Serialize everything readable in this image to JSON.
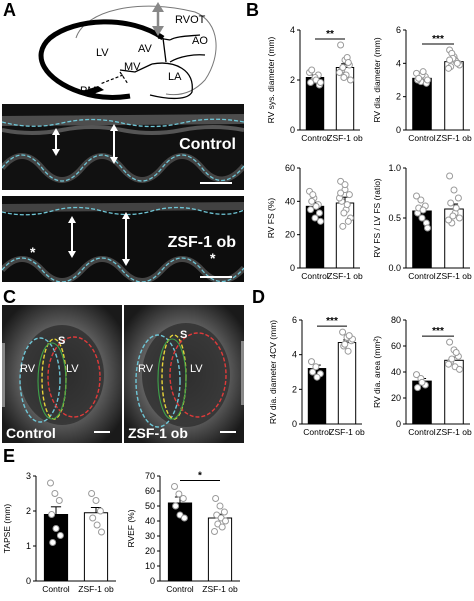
{
  "panels": {
    "A": "A",
    "B": "B",
    "C": "C",
    "D": "D",
    "E": "E"
  },
  "diagram": {
    "rvot": "RVOT",
    "ao": "AO",
    "lv": "LV",
    "av": "AV",
    "mv": "MV",
    "la": "LA",
    "pm": "PM"
  },
  "mmode": {
    "control": "Control",
    "zsf": "ZSF-1 ob",
    "asterisk": "*"
  },
  "echo": {
    "control": "Control",
    "zsf": "ZSF-1 ob",
    "rv": "RV",
    "lv": "LV",
    "s": "S"
  },
  "colors": {
    "control_bar": "#000000",
    "zsf_bar": "#ffffff",
    "dots": "#9a9a9a",
    "trace": "#6fc6d6"
  },
  "chart_data": [
    {
      "id": "b1",
      "type": "bar",
      "ylabel": "RV sys. diameter (mm)",
      "categories": [
        "Control",
        "ZSF-1 ob"
      ],
      "values": [
        2.1,
        2.5
      ],
      "errors": [
        0.1,
        0.15
      ],
      "ylim": [
        0,
        4
      ],
      "yticks": [
        "0",
        "2",
        "4"
      ],
      "sig": "**",
      "points": [
        [
          2.3,
          2.0,
          2.2,
          1.9,
          2.1,
          1.8,
          2.4,
          2.0,
          1.9
        ],
        [
          3.4,
          2.8,
          2.6,
          2.4,
          2.2,
          2.0,
          2.5,
          2.9,
          2.3,
          2.1,
          2.7
        ]
      ]
    },
    {
      "id": "b2",
      "type": "bar",
      "ylabel": "RV dia. diameter (mm)",
      "categories": [
        "Control",
        "ZSF-1 ob"
      ],
      "values": [
        3.1,
        4.1
      ],
      "errors": [
        0.1,
        0.12
      ],
      "ylim": [
        0,
        6
      ],
      "yticks": [
        "0",
        "2",
        "4",
        "6"
      ],
      "sig": "***",
      "points": [
        [
          3.4,
          2.9,
          3.2,
          3.0,
          3.3,
          2.8,
          3.1,
          3.5,
          3.0
        ],
        [
          4.8,
          4.4,
          4.0,
          3.8,
          4.2,
          3.9,
          4.6,
          4.1,
          3.7,
          4.3,
          4.0,
          4.2
        ]
      ]
    },
    {
      "id": "b3",
      "type": "bar",
      "ylabel": "RV FS (%)",
      "categories": [
        "Control",
        "ZSF-1 ob"
      ],
      "values": [
        37,
        39
      ],
      "errors": [
        2.5,
        3.5
      ],
      "ylim": [
        0,
        60
      ],
      "yticks": [
        "0",
        "20",
        "40",
        "60"
      ],
      "sig": "",
      "points": [
        [
          46,
          42,
          38,
          35,
          30,
          33,
          40,
          37,
          28,
          44
        ],
        [
          52,
          47,
          44,
          40,
          35,
          30,
          25,
          38,
          42,
          33,
          28,
          45,
          50
        ]
      ]
    },
    {
      "id": "b4",
      "type": "bar",
      "ylabel": "RV FS / LV FS (ratio)",
      "categories": [
        "Control",
        "ZSF-1 ob"
      ],
      "values": [
        0.57,
        0.59
      ],
      "errors": [
        0.04,
        0.05
      ],
      "ylim": [
        0,
        1.0
      ],
      "yticks": [
        "0.0",
        "0.5",
        "1.0"
      ],
      "sig": "",
      "points": [
        [
          0.72,
          0.68,
          0.62,
          0.55,
          0.5,
          0.45,
          0.6,
          0.58,
          0.4
        ],
        [
          0.92,
          0.78,
          0.7,
          0.65,
          0.55,
          0.5,
          0.45,
          0.6,
          0.48,
          0.52
        ]
      ]
    },
    {
      "id": "d1",
      "type": "bar",
      "ylabel": "RV dia. diameter 4CV (mm)",
      "categories": [
        "Control",
        "ZSF-1 ob"
      ],
      "values": [
        3.2,
        4.7
      ],
      "errors": [
        0.2,
        0.15
      ],
      "ylim": [
        0,
        6
      ],
      "yticks": [
        "0",
        "2",
        "4",
        "6"
      ],
      "sig": "***",
      "points": [
        [
          3.6,
          3.3,
          2.9,
          3.0,
          2.7
        ],
        [
          5.3,
          5.0,
          4.8,
          4.5,
          4.2,
          4.9,
          4.6,
          5.1
        ]
      ]
    },
    {
      "id": "d2",
      "type": "bar",
      "ylabel": "RV dia. area (mm²)",
      "categories": [
        "Control",
        "ZSF-1 ob"
      ],
      "values": [
        33,
        49
      ],
      "errors": [
        2,
        2.5
      ],
      "ylim": [
        0,
        80
      ],
      "yticks": [
        "0",
        "20",
        "40",
        "60",
        "80"
      ],
      "sig": "***",
      "points": [
        [
          38,
          35,
          30,
          28,
          32
        ],
        [
          63,
          57,
          52,
          48,
          44,
          42,
          50,
          55,
          46
        ]
      ]
    },
    {
      "id": "e1",
      "type": "bar",
      "ylabel": "TAPSE (mm)",
      "categories": [
        "Control",
        "ZSF-1 ob"
      ],
      "values": [
        1.9,
        1.95
      ],
      "errors": [
        0.22,
        0.15
      ],
      "ylim": [
        0,
        3
      ],
      "yticks": [
        "0",
        "1",
        "2",
        "3"
      ],
      "sig": "",
      "points": [
        [
          2.8,
          2.5,
          2.3,
          1.9,
          1.5,
          1.3,
          1.1
        ],
        [
          2.5,
          2.3,
          2.0,
          1.8,
          1.6,
          1.4
        ]
      ]
    },
    {
      "id": "e2",
      "type": "bar",
      "ylabel": "RVEF (%)",
      "categories": [
        "Control",
        "ZSF-1 ob"
      ],
      "values": [
        52,
        42
      ],
      "errors": [
        4,
        2.5
      ],
      "ylim": [
        0,
        70
      ],
      "yticks": [
        "0",
        "10",
        "20",
        "30",
        "40",
        "50",
        "60",
        "70"
      ],
      "sig": "*",
      "points": [
        [
          63,
          58,
          55,
          50,
          44,
          42
        ],
        [
          55,
          50,
          46,
          44,
          42,
          40,
          38,
          36,
          33
        ]
      ]
    }
  ]
}
